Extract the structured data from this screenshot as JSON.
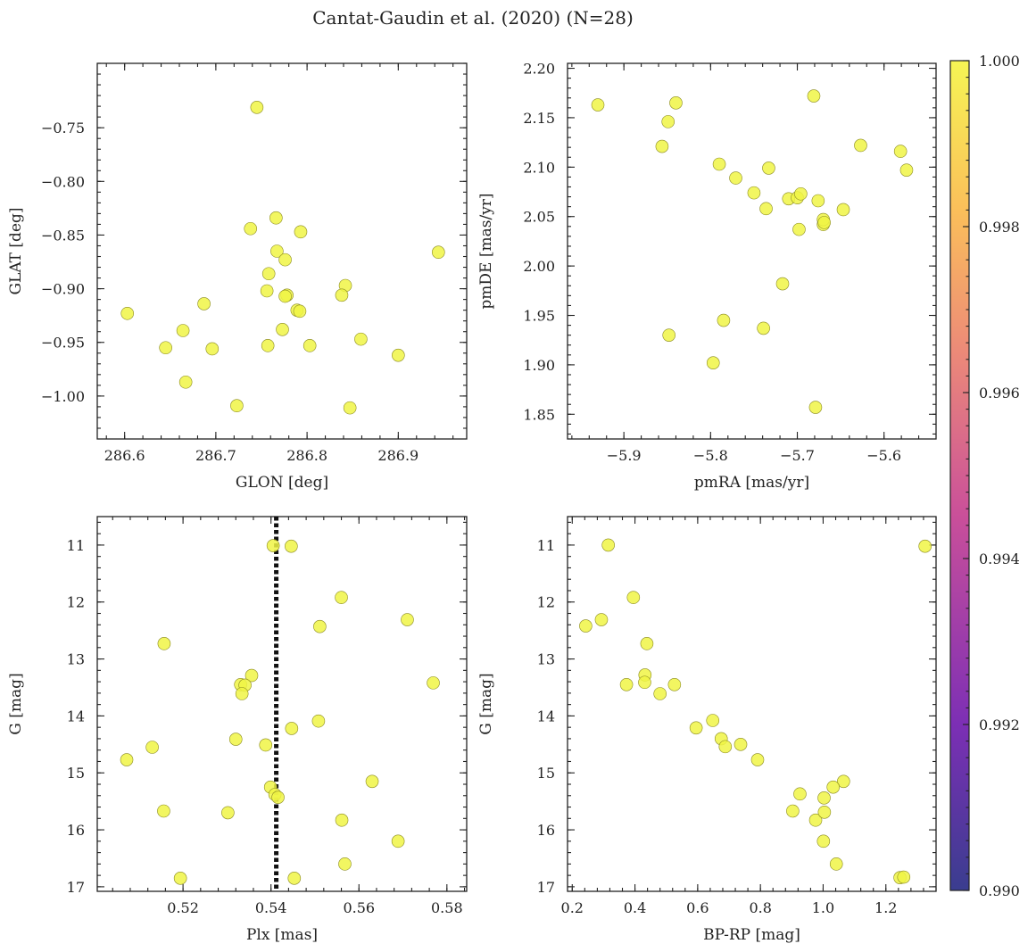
{
  "title": "Cantat-Gaudin et al. (2020) (N=28)",
  "point_color": "#f0f545",
  "vline_color": "#111111",
  "colorbar": {
    "ticks": [
      "0.990",
      "0.992",
      "0.994",
      "0.996",
      "0.998",
      "1.000"
    ],
    "range": [
      0.99,
      1.0
    ],
    "colors": [
      "#3a3d8f",
      "#7c2fb5",
      "#c94f9a",
      "#ec8a78",
      "#fbbf5a",
      "#f6f554"
    ]
  },
  "chart_data": [
    {
      "type": "scatter",
      "xlabel": "GLON [deg]",
      "ylabel": "GLAT [deg]",
      "xlim": [
        286.57,
        286.975
      ],
      "ylim": [
        -1.04,
        -0.69
      ],
      "xticks": [
        "286.6",
        "286.7",
        "286.8",
        "286.9"
      ],
      "xtick_values": [
        286.6,
        286.7,
        286.8,
        286.9
      ],
      "yticks": [
        "−0.75",
        "−0.80",
        "−0.85",
        "−0.90",
        "−0.95",
        "−1.00"
      ],
      "ytick_values": [
        -0.75,
        -0.8,
        -0.85,
        -0.9,
        -0.95,
        -1.0
      ],
      "x": [
        286.745,
        286.738,
        286.766,
        286.793,
        286.767,
        286.776,
        286.758,
        286.756,
        286.778,
        286.776,
        286.789,
        286.792,
        286.773,
        286.757,
        286.803,
        286.842,
        286.838,
        286.859,
        286.9,
        286.944,
        286.603,
        286.645,
        286.664,
        286.687,
        286.696,
        286.667,
        286.723,
        286.847
      ],
      "y": [
        -0.731,
        -0.844,
        -0.834,
        -0.847,
        -0.865,
        -0.873,
        -0.886,
        -0.902,
        -0.906,
        -0.907,
        -0.92,
        -0.921,
        -0.938,
        -0.953,
        -0.953,
        -0.897,
        -0.906,
        -0.947,
        -0.962,
        -0.866,
        -0.923,
        -0.955,
        -0.939,
        -0.914,
        -0.956,
        -0.987,
        -1.009,
        -1.011
      ]
    },
    {
      "type": "scatter",
      "xlabel": "pmRA [mas/yr]",
      "ylabel": "pmDE [mas/yr]",
      "xlim": [
        -5.965,
        -5.54
      ],
      "ylim": [
        1.825,
        2.205
      ],
      "xticks": [
        "−5.9",
        "−5.8",
        "−5.7",
        "−5.6"
      ],
      "xtick_values": [
        -5.9,
        -5.8,
        -5.7,
        -5.6
      ],
      "yticks": [
        "1.85",
        "1.90",
        "1.95",
        "2.00",
        "2.05",
        "2.10",
        "2.15",
        "2.20"
      ],
      "ytick_values": [
        1.85,
        1.9,
        1.95,
        2.0,
        2.05,
        2.1,
        2.15,
        2.2
      ],
      "x": [
        -5.93,
        -5.84,
        -5.849,
        -5.856,
        -5.681,
        -5.627,
        -5.581,
        -5.574,
        -5.79,
        -5.771,
        -5.733,
        -5.75,
        -5.71,
        -5.7,
        -5.696,
        -5.676,
        -5.736,
        -5.698,
        -5.67,
        -5.67,
        -5.647,
        -5.717,
        -5.785,
        -5.797,
        -5.739,
        -5.848,
        -5.679,
        -5.669
      ],
      "y": [
        2.163,
        2.165,
        2.146,
        2.121,
        2.172,
        2.122,
        2.116,
        2.097,
        2.103,
        2.089,
        2.099,
        2.074,
        2.068,
        2.069,
        2.073,
        2.066,
        2.058,
        2.037,
        2.042,
        2.047,
        2.057,
        1.982,
        1.945,
        1.902,
        1.937,
        1.93,
        1.857,
        2.044
      ]
    },
    {
      "type": "scatter",
      "xlabel": "Plx [mas]",
      "ylabel": "G [mag]",
      "xlim": [
        0.5005,
        0.5845
      ],
      "ylim": [
        17.08,
        10.5
      ],
      "xticks": [
        "0.52",
        "0.54",
        "0.56",
        "0.58"
      ],
      "xtick_values": [
        0.52,
        0.54,
        0.56,
        0.58
      ],
      "yticks": [
        "11",
        "12",
        "13",
        "14",
        "15",
        "16",
        "17"
      ],
      "ytick_values": [
        11,
        12,
        13,
        14,
        15,
        16,
        17
      ],
      "vline": 0.5412,
      "x": [
        0.5405,
        0.5446,
        0.556,
        0.571,
        0.5511,
        0.5157,
        0.5356,
        0.5331,
        0.5341,
        0.5334,
        0.5769,
        0.5508,
        0.5447,
        0.532,
        0.5388,
        0.5072,
        0.513,
        0.563,
        0.5399,
        0.5409,
        0.5416,
        0.5156,
        0.5302,
        0.5561,
        0.5689,
        0.5568,
        0.5194,
        0.5453
      ],
      "y": [
        11.01,
        11.02,
        11.92,
        12.31,
        12.43,
        12.73,
        13.29,
        13.45,
        13.46,
        13.61,
        13.42,
        14.09,
        14.22,
        14.41,
        14.51,
        14.77,
        14.55,
        15.15,
        15.25,
        15.38,
        15.43,
        15.67,
        15.7,
        15.83,
        16.2,
        16.6,
        16.85,
        16.85
      ]
    },
    {
      "type": "scatter",
      "xlabel": "BP-RP [mag]",
      "ylabel": "G [mag]",
      "xlim": [
        0.185,
        1.36
      ],
      "ylim": [
        17.08,
        10.5
      ],
      "xticks": [
        "0.2",
        "0.4",
        "0.6",
        "0.8",
        "1.0",
        "1.2"
      ],
      "xtick_values": [
        0.2,
        0.4,
        0.6,
        0.8,
        1.0,
        1.2
      ],
      "yticks": [
        "11",
        "12",
        "13",
        "14",
        "15",
        "16",
        "17"
      ],
      "ytick_values": [
        11,
        12,
        13,
        14,
        15,
        16,
        17
      ],
      "x": [
        0.315,
        1.325,
        0.395,
        0.293,
        0.243,
        0.438,
        0.432,
        0.431,
        0.373,
        0.526,
        0.48,
        0.648,
        0.595,
        0.675,
        0.688,
        0.737,
        0.791,
        1.065,
        1.032,
        0.926,
        1.003,
        0.903,
        0.976,
        1.004,
        1.001,
        1.042,
        1.245,
        1.257
      ],
      "y": [
        11.0,
        11.02,
        11.92,
        12.31,
        12.42,
        12.73,
        13.28,
        13.41,
        13.45,
        13.45,
        13.61,
        14.08,
        14.21,
        14.4,
        14.54,
        14.5,
        14.77,
        15.15,
        15.25,
        15.37,
        15.44,
        15.67,
        15.83,
        15.69,
        16.2,
        16.6,
        16.84,
        16.83
      ]
    }
  ]
}
